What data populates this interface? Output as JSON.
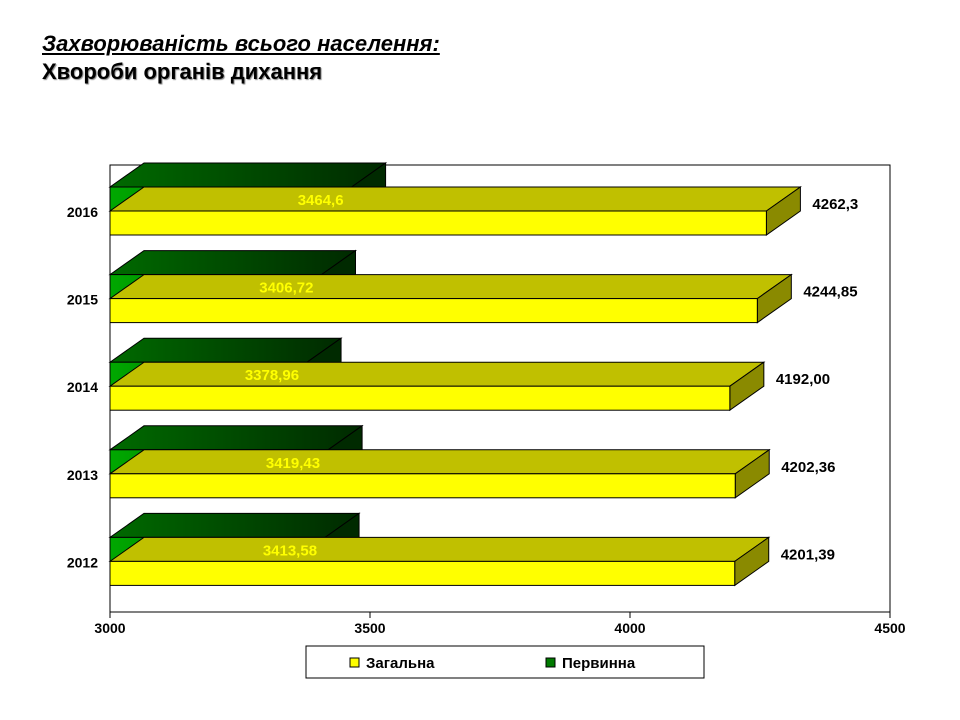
{
  "title": {
    "line1": "Захворюваність всього населення:",
    "line2": "Хвороби органів дихання"
  },
  "colors": {
    "total_front": "#ffff00",
    "total_top": "#c0c000",
    "total_side": "#8a8a00",
    "primary_front": "#009900",
    "primary_top": "#005a00",
    "primary_side": "#003800",
    "primary_label": "#ffff00"
  },
  "chart_data": {
    "type": "bar",
    "orientation": "horizontal",
    "style": "3d-clustered",
    "categories": [
      "2012",
      "2013",
      "2014",
      "2015",
      "2016"
    ],
    "series": [
      {
        "name": "Загальна",
        "values": [
          4201.39,
          4202.36,
          4192.0,
          4244.85,
          4262.3
        ],
        "labels": [
          "4201,39",
          "4202,36",
          "4192,00",
          "4244,85",
          "4262,3"
        ]
      },
      {
        "name": "Первинна",
        "values": [
          3413.58,
          3419.43,
          3378.96,
          3406.72,
          3464.6
        ],
        "labels": [
          "3413,58",
          "3419,43",
          "3378,96",
          "3406,72",
          "3464,6"
        ]
      }
    ],
    "xlim": [
      3000,
      4500
    ],
    "xticks": [
      "3000",
      "3500",
      "4000",
      "4500"
    ],
    "grid": false,
    "legend_position": "bottom"
  }
}
